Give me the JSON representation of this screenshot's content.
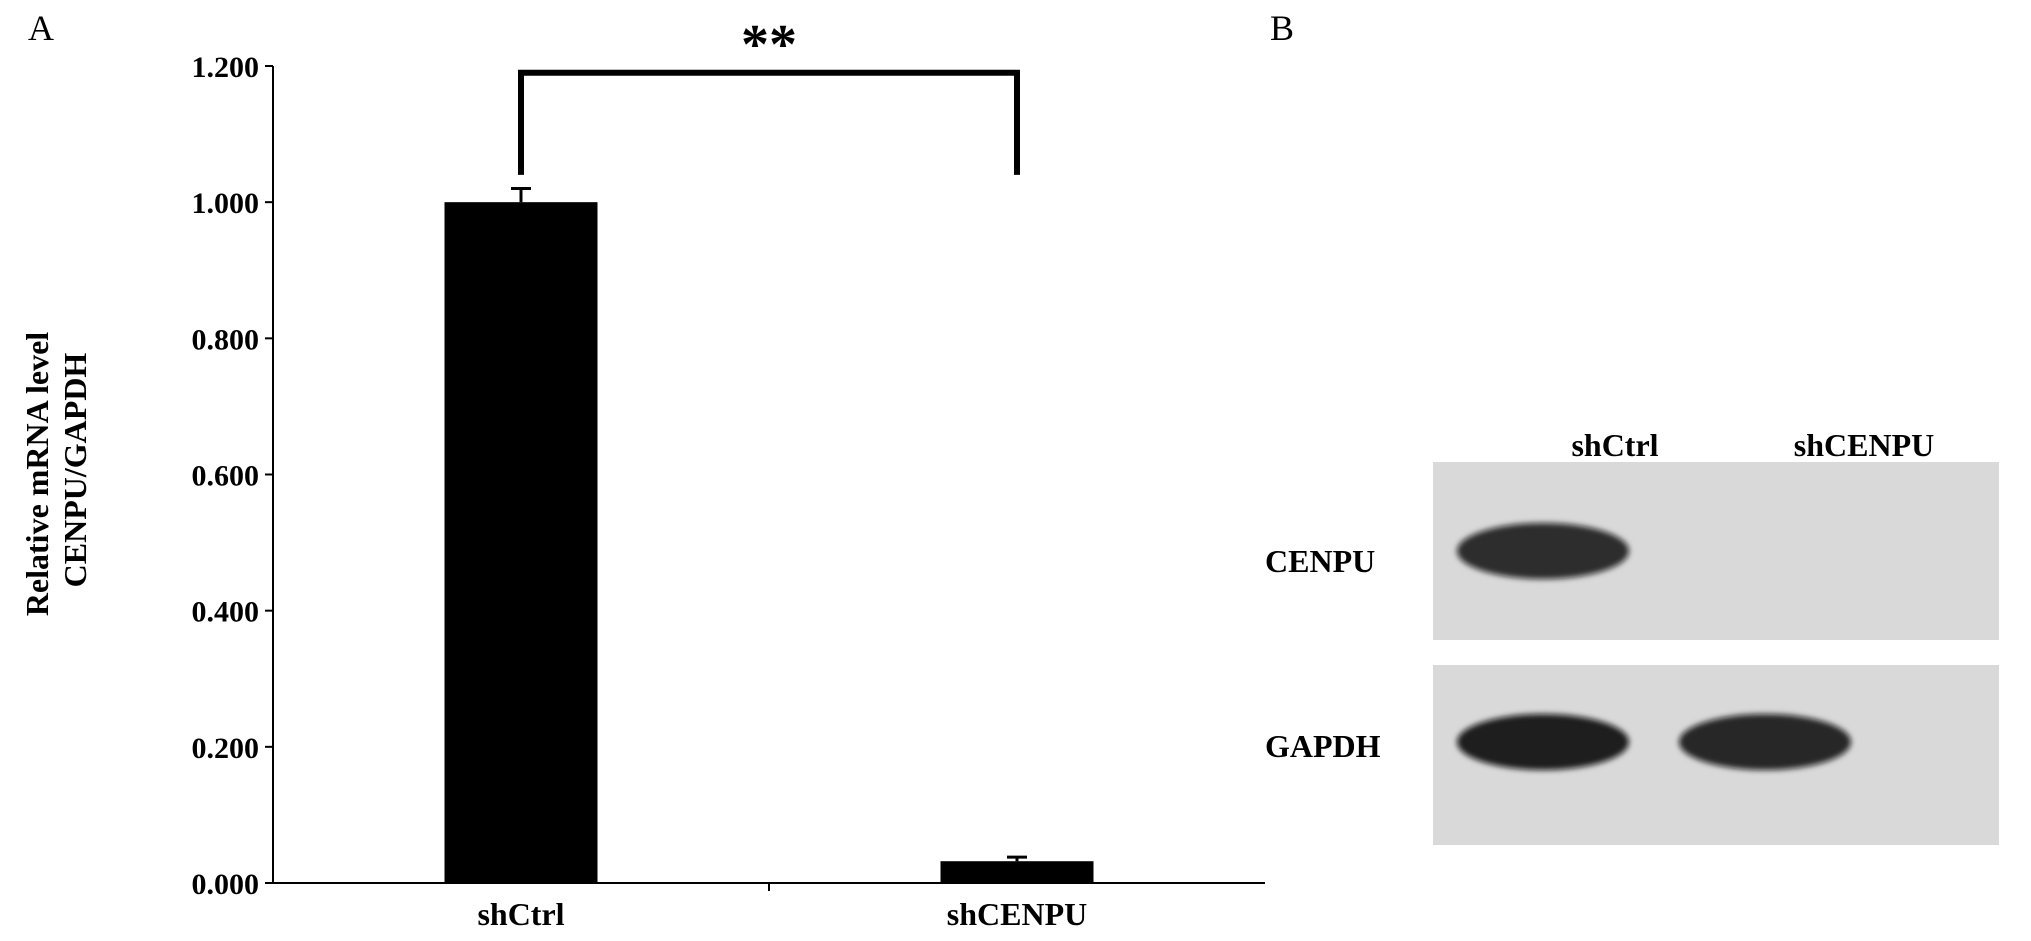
{
  "panels": {
    "a": "A",
    "b": "B"
  },
  "chart_data": {
    "type": "bar",
    "categories": [
      "shCtrl",
      "shCENPU"
    ],
    "values": [
      1.0,
      0.032
    ],
    "errors": [
      0.02,
      0.006
    ],
    "ylabel_lines": [
      "Relative mRNA level",
      "CENPU/GAPDH"
    ],
    "ylim": [
      0,
      1.2
    ],
    "yticks": [
      "0.000",
      "0.200",
      "0.400",
      "0.600",
      "0.800",
      "1.000",
      "1.200"
    ],
    "grid": false,
    "significance": {
      "label": "**",
      "between": [
        "shCtrl",
        "shCENPU"
      ]
    },
    "bar_color": "#000000"
  },
  "blot": {
    "lanes": [
      "shCtrl",
      "shCENPU"
    ],
    "rows": [
      {
        "label": "CENPU",
        "bands": [
          0.85,
          0.0
        ]
      },
      {
        "label": "GAPDH",
        "bands": [
          0.92,
          0.88
        ]
      }
    ],
    "background_color": "#d9d9d9",
    "band_color": "#0d0d0d"
  }
}
